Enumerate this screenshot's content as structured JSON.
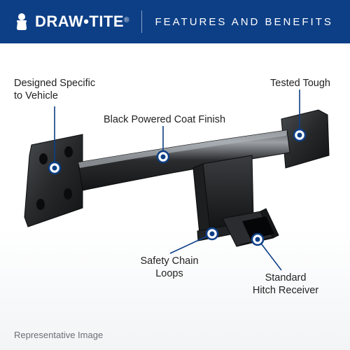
{
  "colors": {
    "header_bg": "#0d3f86",
    "accent": "#0d3f86",
    "text": "#222222",
    "footnote": "#6a6f75",
    "hitch_dark": "#1a1c1e",
    "hitch_mid": "#2e3133",
    "hitch_light": "#4a4d50",
    "hitch_shine": "#8a8e93",
    "dot_fill": "#ffffff"
  },
  "header": {
    "brand": "DRAW•TITE",
    "reg": "®",
    "title": "FEATURES AND BENEFITS"
  },
  "callouts": {
    "designed": "Designed Specific\nto Vehicle",
    "black_finish": "Black Powered Coat Finish",
    "tested": "Tested Tough",
    "safety": "Safety Chain\nLoops",
    "receiver": "Standard\nHitch Receiver"
  },
  "footnote": "Representative Image",
  "layout": {
    "callout_fontsize": 14.5,
    "dot_outer_r": 8,
    "dot_inner_r": 3.5,
    "line_stroke": 1.6
  }
}
